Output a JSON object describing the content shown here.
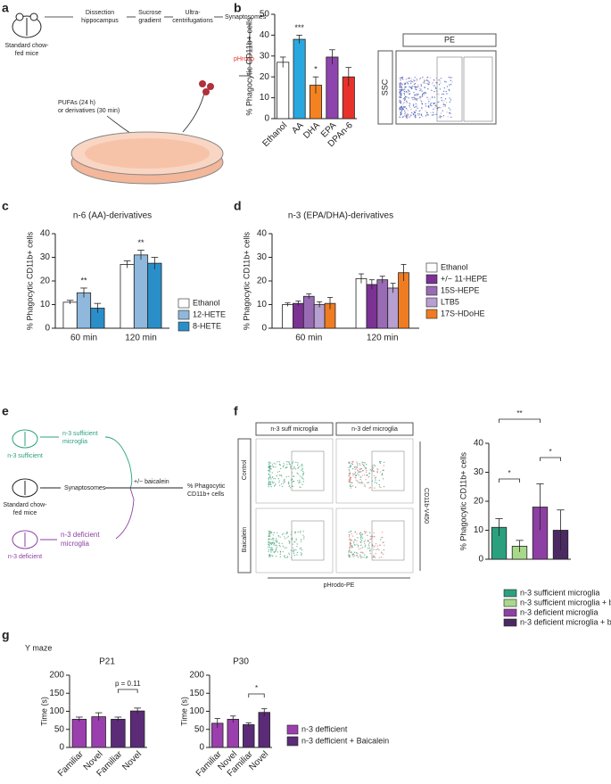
{
  "panel_labels": [
    "a",
    "b",
    "c",
    "d",
    "e",
    "f",
    "g"
  ],
  "diagram_a": {
    "mouse": [
      "Standard chow-",
      "fed mice"
    ],
    "step1": [
      "Dissection",
      "hippocampus"
    ],
    "step2": [
      "Sucrose",
      "gradient"
    ],
    "step3": [
      "Ultra-",
      "centrifugations"
    ],
    "step4": "Synaptosomes",
    "dye": "pHrodo",
    "treatment": [
      "PUFAs (24 h)",
      "or derivatives (30 min)"
    ]
  },
  "flow_b": {
    "header": "PE",
    "y_label": "SSC"
  },
  "diagram_e": {
    "suff_mouse": "n-3 sufficient",
    "suff_cells": [
      "n-3 sufficient",
      "microglia"
    ],
    "std_mouse": [
      "Standard chow-",
      "fed mice"
    ],
    "synaptosomes": "Synaptosomes",
    "treatment": "+/− baicalein",
    "readout": [
      "% Phagocytic",
      "CD11b+ cells"
    ],
    "def_cells": [
      "n-3 deficient",
      "microglia"
    ],
    "def_mouse": "n-3 deficient"
  },
  "flow_f": {
    "col1": "n-3 suff microglia",
    "col2": "n-3 def microglia",
    "row1": "Control",
    "row2": "Baicalein",
    "y_label": "CD11b-V450",
    "x_label": "pHrodo-PE"
  },
  "section_g": "Y maze",
  "chart_data": [
    {
      "type": "bar",
      "y_label": "% Phagocytic CD11b+ cells",
      "categories": [
        "Ethanol",
        "AA",
        "DHA",
        "EPA",
        "DPAn-6"
      ],
      "values": [
        27,
        38,
        16,
        29.5,
        20
      ],
      "errors": [
        2.5,
        2,
        4,
        3.5,
        4.5
      ],
      "colors": [
        "#ffffff",
        "#29a8df",
        "#f58220",
        "#8e44ad",
        "#e8312b"
      ],
      "ylim": [
        0,
        50
      ],
      "yticks": [
        0,
        10,
        20,
        30,
        40,
        50
      ],
      "annotations": [
        "***",
        "*"
      ]
    },
    {
      "type": "bar",
      "title": "n-6 (AA)-derivatives",
      "y_label": "% Phagocytic CD11b+ cells",
      "categories": [
        "60 min",
        "120 min"
      ],
      "series": [
        {
          "name": "Ethanol",
          "color": "#ffffff",
          "values": [
            11,
            27
          ],
          "errors": [
            0.8,
            1.5
          ]
        },
        {
          "name": "12-HETE",
          "color": "#8fb8dc",
          "values": [
            15,
            31
          ],
          "errors": [
            2,
            2
          ]
        },
        {
          "name": "8-HETE",
          "color": "#2a8fc9",
          "values": [
            8.5,
            27.5
          ],
          "errors": [
            2,
            2.5
          ]
        }
      ],
      "ylim": [
        0,
        40
      ],
      "yticks": [
        0,
        10,
        20,
        30,
        40
      ],
      "annotations": [
        "**",
        "**"
      ]
    },
    {
      "type": "bar",
      "title": "n-3 (EPA/DHA)-derivatives",
      "y_label": "% Phagocytic CD11b+ cells",
      "categories": [
        "60 min",
        "120 min"
      ],
      "series": [
        {
          "name": "Ethanol",
          "color": "#ffffff",
          "values": [
            10,
            21
          ],
          "errors": [
            0.7,
            2
          ]
        },
        {
          "name": "+/− 11-HEPE",
          "color": "#7b3294",
          "values": [
            10.5,
            18.5
          ],
          "errors": [
            1,
            2
          ]
        },
        {
          "name": "15S-HEPE",
          "color": "#9a6bb5",
          "values": [
            13.5,
            20.5
          ],
          "errors": [
            1,
            1.5
          ]
        },
        {
          "name": "LTB5",
          "color": "#b79fd1",
          "values": [
            10,
            17
          ],
          "errors": [
            1.2,
            2
          ]
        },
        {
          "name": "17S-HDoHE",
          "color": "#f07c22",
          "values": [
            10.5,
            23.5
          ],
          "errors": [
            2.5,
            3.5
          ]
        }
      ],
      "ylim": [
        0,
        40
      ],
      "yticks": [
        0,
        10,
        20,
        30,
        40
      ]
    },
    {
      "type": "bar",
      "y_label": "% Phagocytic CD11b+ cells",
      "categories": [
        "n-3 sufficient microglia",
        "n-3 sufficient microglia + baicalein",
        "n-3 deficient microglia",
        "n-3 deficient microglia + baicalein"
      ],
      "values": [
        11,
        4.5,
        18,
        10
      ],
      "errors": [
        3,
        2,
        8,
        7
      ],
      "colors": [
        "#2aa07e",
        "#a8d98a",
        "#8e3fa3",
        "#4b2a63"
      ],
      "ylim": [
        0,
        40
      ],
      "yticks": [
        0,
        10,
        20,
        30,
        40
      ],
      "annotations": [
        "*",
        "**",
        "*"
      ]
    },
    {
      "type": "bar",
      "title": "P21",
      "y_label": "Time (s)",
      "categories": [
        "Familiar",
        "Novel",
        "Familiar",
        "Novel"
      ],
      "series": [
        {
          "color": "#9b3fae",
          "values": [
            78,
            85,
            null,
            null
          ],
          "errors": [
            6,
            11,
            null,
            null
          ]
        },
        {
          "color": "#5b2b78",
          "values": [
            null,
            null,
            78,
            101
          ],
          "errors": [
            null,
            null,
            6,
            8
          ]
        }
      ],
      "ylim": [
        0,
        200
      ],
      "yticks": [
        0,
        50,
        100,
        150,
        200
      ],
      "annotations": [
        "p = 0.11"
      ]
    },
    {
      "type": "bar",
      "title": "P30",
      "y_label": "Time (s)",
      "categories": [
        "Familiar",
        "Novel",
        "Familiar",
        "Novel"
      ],
      "series": [
        {
          "name": "n-3 defficient",
          "color": "#9b3fae",
          "values": [
            67,
            78,
            null,
            null
          ],
          "errors": [
            13,
            9,
            null,
            null
          ]
        },
        {
          "name": "n-3 defficient + Baicalein",
          "color": "#5b2b78",
          "values": [
            null,
            null,
            63,
            97
          ],
          "errors": [
            null,
            null,
            5,
            10
          ]
        }
      ],
      "ylim": [
        0,
        200
      ],
      "yticks": [
        0,
        50,
        100,
        150,
        200
      ],
      "annotations": [
        "*"
      ]
    }
  ]
}
